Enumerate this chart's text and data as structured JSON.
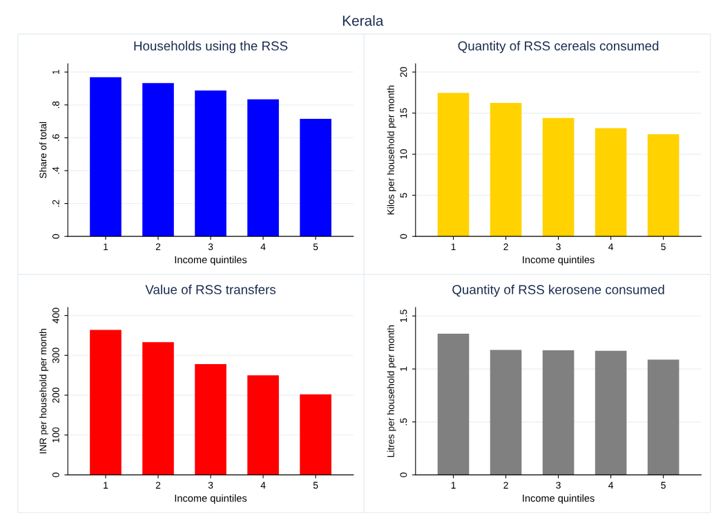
{
  "chart_data": [
    {
      "type": "bar",
      "title": "Households using the RSS",
      "annotations": [
        "Kerala"
      ],
      "xlabel": "Income quintiles",
      "ylabel": "Share of total",
      "categories": [
        "1",
        "2",
        "3",
        "4",
        "5"
      ],
      "values": [
        0.968,
        0.933,
        0.888,
        0.834,
        0.715
      ],
      "color": "#0000ff",
      "ylim": [
        0,
        1.05
      ],
      "yticks": [
        {
          "value": 0,
          "label": "0"
        },
        {
          "value": 0.2,
          "label": ".2"
        },
        {
          "value": 0.4,
          "label": ".4"
        },
        {
          "value": 0.6,
          "label": ".6"
        },
        {
          "value": 0.8,
          "label": ".8"
        },
        {
          "value": 1,
          "label": "1"
        }
      ],
      "grid": "y"
    },
    {
      "type": "bar",
      "title": "Quantity of RSS cereals consumed",
      "xlabel": "Income quintiles",
      "ylabel": "Kilos per household per month",
      "categories": [
        "1",
        "2",
        "3",
        "4",
        "5"
      ],
      "values": [
        17.45,
        16.24,
        14.4,
        13.17,
        12.43
      ],
      "color": "#ffd200",
      "ylim": [
        0,
        21
      ],
      "yticks": [
        0,
        5,
        10,
        15,
        20
      ],
      "grid": "y"
    },
    {
      "type": "bar",
      "title": "Value of RSS transfers",
      "xlabel": "Income quintiles",
      "ylabel": "INR per household per month",
      "categories": [
        "1",
        "2",
        "3",
        "4",
        "5"
      ],
      "values": [
        364,
        333,
        278,
        250,
        202
      ],
      "color": "#ff0000",
      "ylim": [
        0,
        420
      ],
      "yticks": [
        0,
        100,
        200,
        300,
        400
      ],
      "grid": "y"
    },
    {
      "type": "bar",
      "title": "Quantity of RSS kerosene consumed",
      "xlabel": "Income quintiles",
      "ylabel": "Litres per household per month",
      "categories": [
        "1",
        "2",
        "3",
        "4",
        "5"
      ],
      "values": [
        1.333,
        1.179,
        1.177,
        1.171,
        1.088
      ],
      "color": "#808080",
      "ylim": [
        0,
        1.58
      ],
      "yticks": [
        {
          "value": 0,
          "label": "0"
        },
        {
          "value": 0.5,
          "label": ".5"
        },
        {
          "value": 1,
          "label": "1"
        },
        {
          "value": 1.5,
          "label": "1.5"
        }
      ],
      "grid": "y"
    }
  ]
}
